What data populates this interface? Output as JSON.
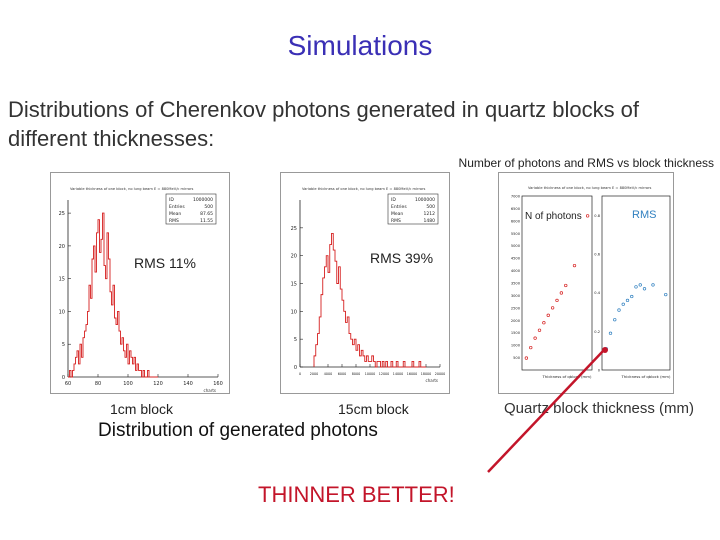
{
  "slide": {
    "title": "Simulations",
    "intro": "Distributions of Cherenkov photons generated in quartz blocks of different thicknesses:",
    "top_caption": "Number of photons and RMS vs block thickness",
    "label_1cm": "1cm block",
    "label_15cm": "15cm block",
    "dist_caption": "Distribution of generated photons",
    "thinner": "THINNER BETTER!",
    "quartz_label": "Quartz block thickness (mm)",
    "colors": {
      "title": "#3a2fb5",
      "red": "#c3152a",
      "plot_line": "#d62020",
      "blue_points": "#3080c0"
    }
  },
  "hist1": {
    "annotation": "RMS 11%",
    "plot_title": "Variable thickness of one block, no lung beam E = 880MeV/c mirrors",
    "stats": [
      [
        "ID",
        "1000000"
      ],
      [
        "Entries",
        "500"
      ],
      [
        "Mean",
        "87.65"
      ],
      [
        "RMS",
        "11.55"
      ]
    ],
    "y_ticks": [
      "25",
      "20",
      "15",
      "10",
      "5",
      "0"
    ],
    "x_ticks": [
      "60",
      "80",
      "100",
      "120",
      "140",
      "160"
    ],
    "x_unit": "charts"
  },
  "hist2": {
    "annotation": "RMS 39%",
    "plot_title": "Variable thickness of one block, no lung beam E = 880MeV/c mirrors",
    "stats": [
      [
        "ID",
        "1000000"
      ],
      [
        "Entries",
        "500"
      ],
      [
        "Mean",
        "1212"
      ],
      [
        "RMS",
        "1480"
      ]
    ],
    "y_ticks": [
      "25",
      "20",
      "15",
      "10",
      "5",
      "0"
    ],
    "x_ticks": [
      "0",
      "2000",
      "4000",
      "6000",
      "8000",
      "10000",
      "12000",
      "14000",
      "16000",
      "18000",
      "20000"
    ],
    "x_unit": "charts"
  },
  "summary": {
    "left_label": "N of photons",
    "right_label": "RMS",
    "plot_title": "Variable thickness of one block, no lung beam E = 880MeV/c mirrors",
    "left_y_ticks": [
      "7000",
      "6500",
      "6000",
      "5500",
      "5000",
      "4500",
      "4000",
      "3500",
      "3000",
      "2500",
      "2000",
      "1500",
      "1000",
      "500"
    ],
    "right_y_ticks": [
      "0.8",
      "0.6",
      "0.4",
      "0.2",
      "0"
    ],
    "left_xlabel": "Thickness of qblock (mm)",
    "right_xlabel": "Thickness of qblock (mm)"
  },
  "chart_data": [
    {
      "type": "bar",
      "title": "Variable thickness of one block, no lung beam E = 880MeV/c mirrors",
      "xlabel": "charts",
      "ylabel": "",
      "xlim": [
        60,
        160
      ],
      "ylim": [
        0,
        27
      ],
      "bin_start": 60,
      "bin_width": 1,
      "values": [
        0,
        1,
        0,
        1,
        2,
        3,
        4,
        2,
        5,
        3,
        6,
        7,
        8,
        10,
        14,
        12,
        18,
        20,
        16,
        22,
        24,
        19,
        21,
        25,
        17,
        15,
        22,
        18,
        13,
        11,
        14,
        9,
        8,
        10,
        7,
        5,
        6,
        4,
        3,
        5,
        2,
        4,
        3,
        2,
        3,
        1,
        2,
        1,
        1,
        0,
        1,
        0,
        0,
        1,
        0,
        0,
        0,
        0,
        0,
        0
      ]
    },
    {
      "type": "bar",
      "title": "Variable thickness of one block, no lung beam E = 880MeV/c mirrors",
      "xlabel": "charts",
      "ylabel": "",
      "xlim": [
        0,
        20000
      ],
      "ylim": [
        0,
        30
      ],
      "bin_start": 2000,
      "bin_width": 250,
      "values": [
        2,
        4,
        6,
        9,
        13,
        16,
        18,
        20,
        17,
        22,
        24,
        21,
        19,
        15,
        18,
        14,
        12,
        10,
        8,
        9,
        6,
        5,
        4,
        5,
        3,
        4,
        2,
        3,
        2,
        1,
        2,
        1,
        1,
        2,
        1,
        0,
        1,
        1,
        0,
        1,
        0,
        1,
        0,
        0,
        1,
        0,
        0,
        1,
        0,
        0,
        0,
        1,
        0,
        0,
        0,
        0,
        1,
        0,
        0,
        0,
        1,
        0,
        0,
        0
      ]
    },
    {
      "type": "scatter",
      "title": "N of photons",
      "xlabel": "Thickness of qblock (mm)",
      "ylabel": "",
      "ylim": [
        0,
        7000
      ],
      "series": [
        {
          "values_x": [
            1,
            2,
            3,
            4,
            5,
            6,
            7,
            8,
            9,
            10,
            12,
            15
          ],
          "values_y": [
            480,
            900,
            1280,
            1600,
            1900,
            2200,
            2500,
            2800,
            3100,
            3400,
            4200,
            6200
          ]
        }
      ]
    },
    {
      "type": "scatter",
      "title": "RMS",
      "xlabel": "Thickness of qblock (mm)",
      "ylabel": "",
      "ylim": [
        0,
        0.9
      ],
      "series": [
        {
          "values_x": [
            1,
            2,
            3,
            4,
            5,
            6,
            7,
            8,
            9,
            10,
            12,
            15
          ],
          "values_y": [
            0.11,
            0.19,
            0.26,
            0.31,
            0.34,
            0.36,
            0.38,
            0.43,
            0.44,
            0.42,
            0.44,
            0.39
          ]
        }
      ]
    }
  ]
}
